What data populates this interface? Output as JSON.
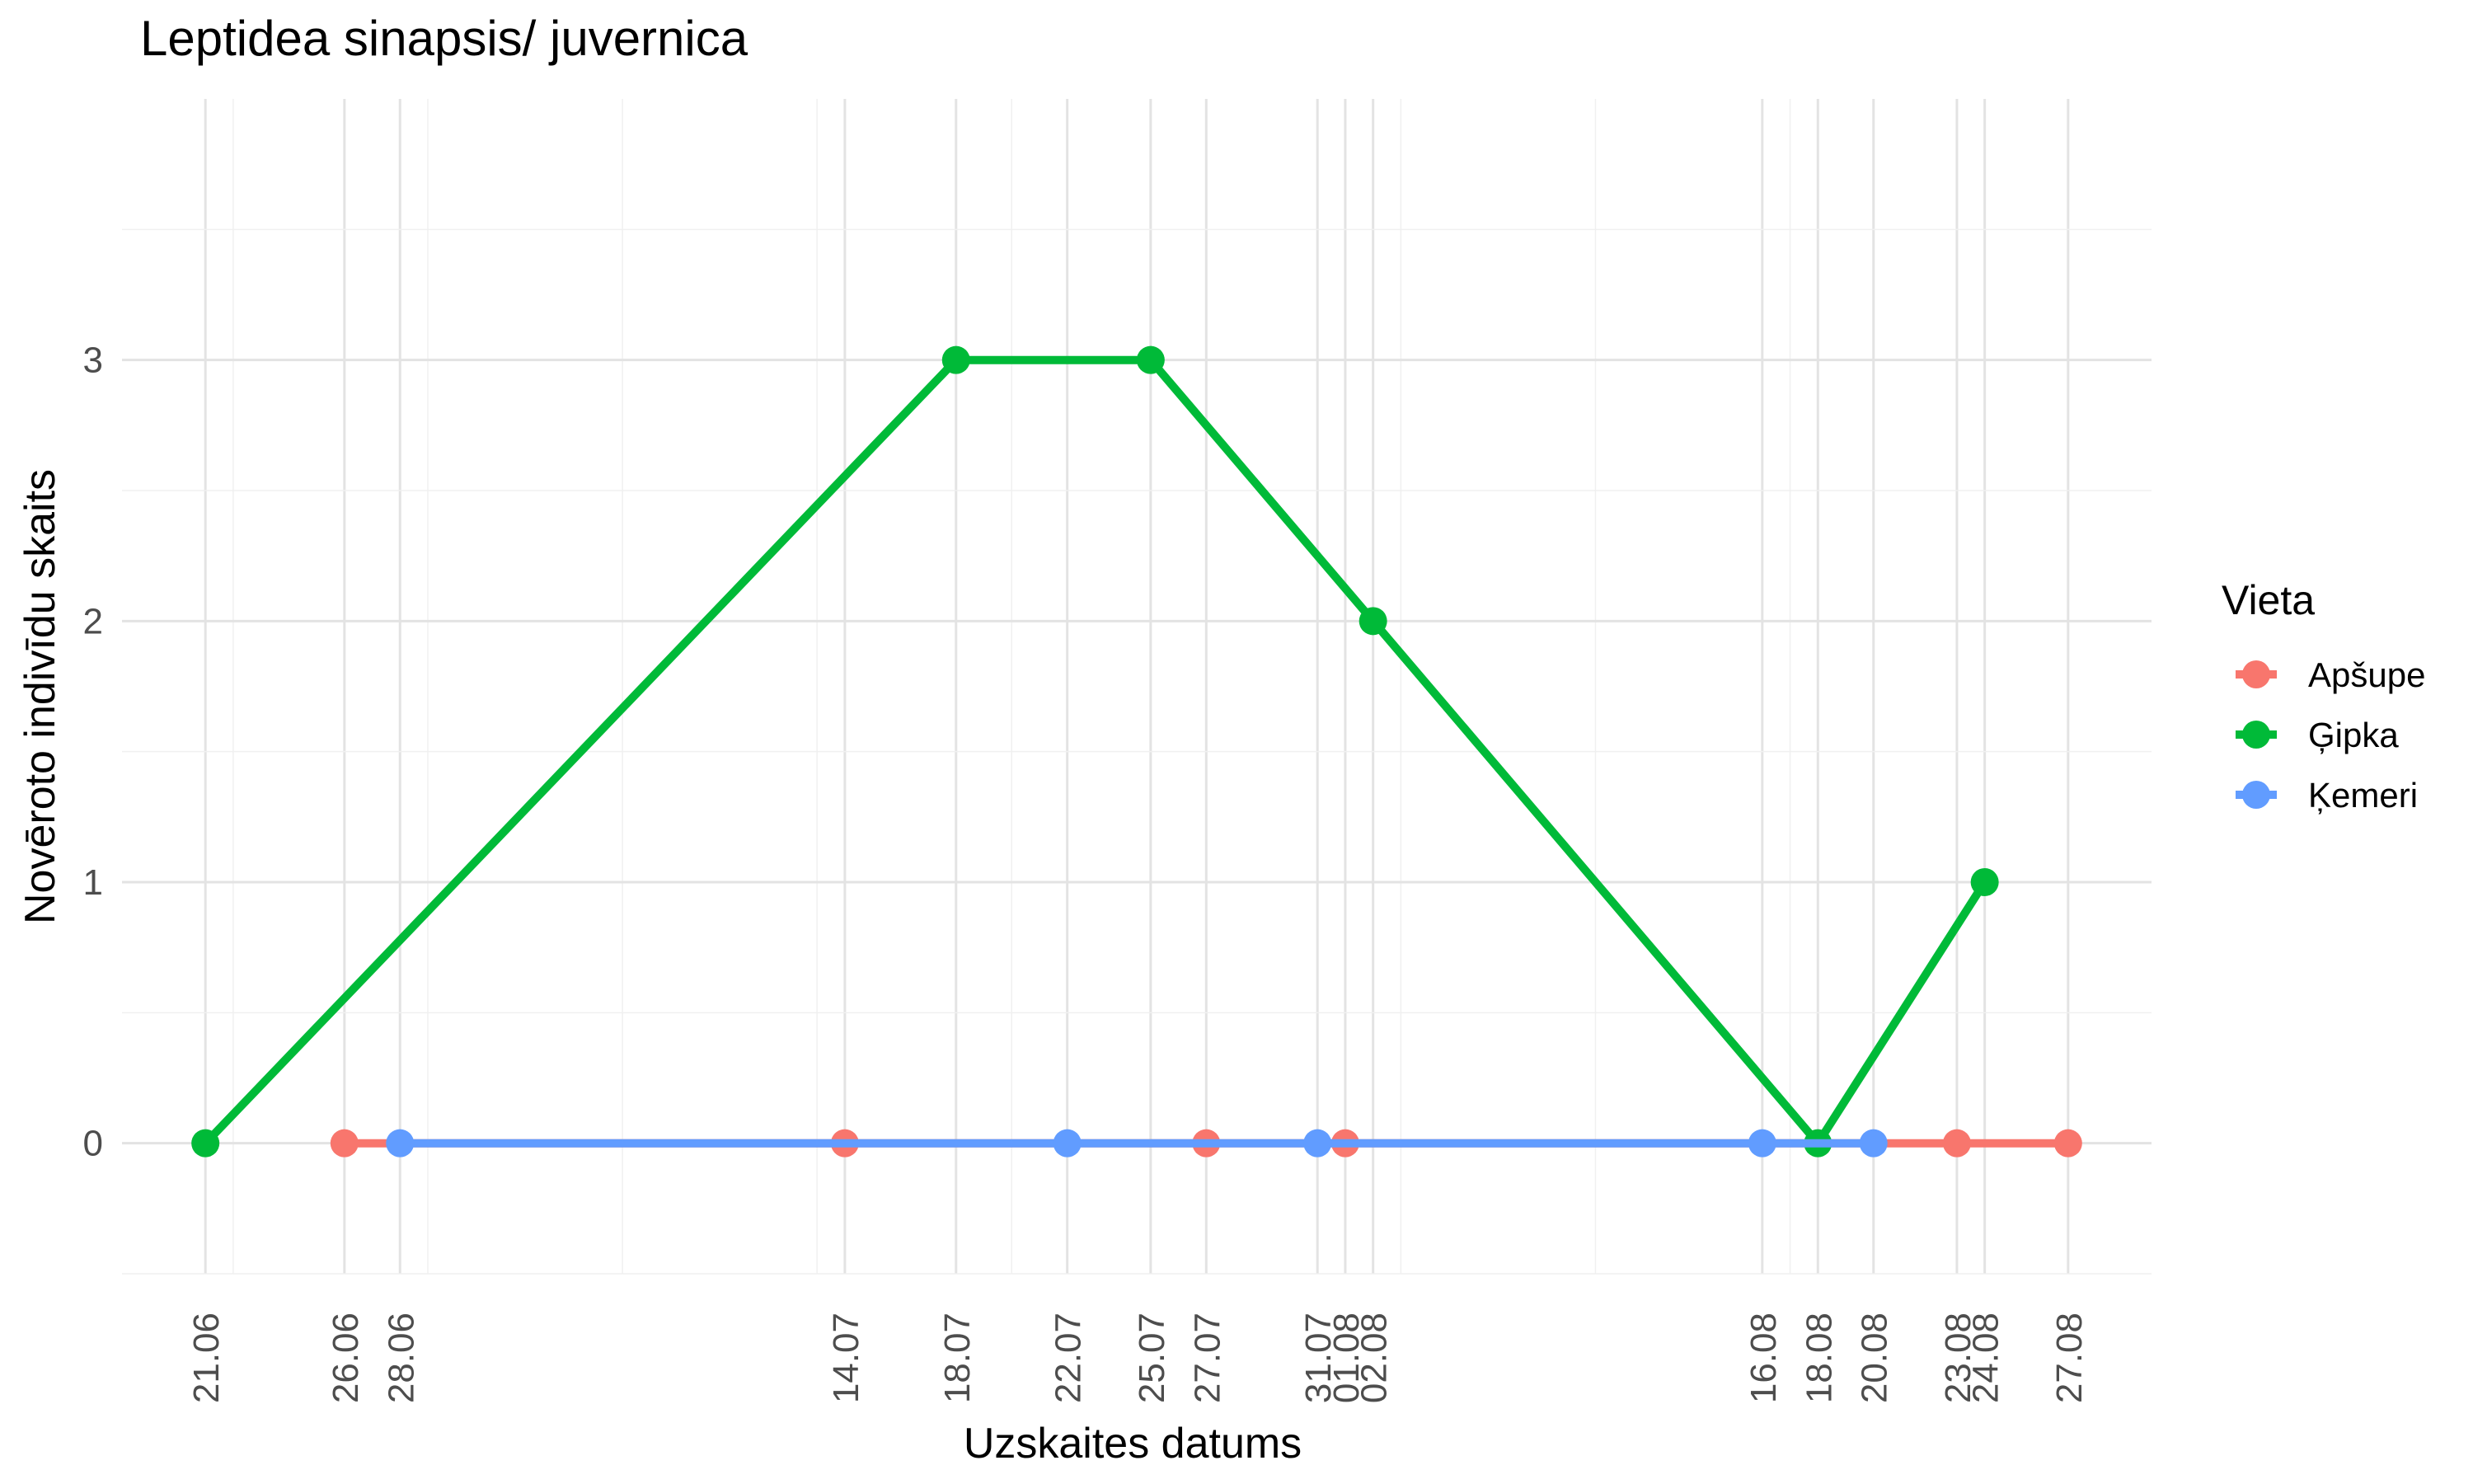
{
  "chart_data": {
    "type": "line",
    "title": "Leptidea sinapsis/ juvernica",
    "xlabel": "Uzskaites datums",
    "ylabel": "Novēroto indivīdu skaits",
    "x_type": "date",
    "x_ticks": [
      "21.06",
      "26.06",
      "28.06",
      "14.07",
      "18.07",
      "22.07",
      "25.07",
      "27.07",
      "31.07",
      "01.08",
      "02.08",
      "16.08",
      "18.08",
      "20.08",
      "23.08",
      "24.08",
      "27.08"
    ],
    "y_ticks": [
      0,
      1,
      2,
      3
    ],
    "ylim": [
      -0.5,
      4.0
    ],
    "grid": true,
    "legend_title": "Vieta",
    "legend_position": "right",
    "series": [
      {
        "name": "Apšupe",
        "color": "#F8766D",
        "points": [
          {
            "x": "26.06",
            "y": 0
          },
          {
            "x": "14.07",
            "y": 0
          },
          {
            "x": "27.07",
            "y": 0
          },
          {
            "x": "01.08",
            "y": 0
          },
          {
            "x": "23.08",
            "y": 0
          },
          {
            "x": "27.08",
            "y": 0
          }
        ]
      },
      {
        "name": "Ģipka",
        "color": "#00BA38",
        "points": [
          {
            "x": "21.06",
            "y": 0
          },
          {
            "x": "18.07",
            "y": 3
          },
          {
            "x": "25.07",
            "y": 3
          },
          {
            "x": "02.08",
            "y": 2
          },
          {
            "x": "18.08",
            "y": 0
          },
          {
            "x": "24.08",
            "y": 1
          }
        ]
      },
      {
        "name": "Ķemeri",
        "color": "#619CFF",
        "points": [
          {
            "x": "28.06",
            "y": 0
          },
          {
            "x": "22.07",
            "y": 0
          },
          {
            "x": "31.07",
            "y": 0
          },
          {
            "x": "16.08",
            "y": 0
          },
          {
            "x": "20.08",
            "y": 0
          }
        ]
      }
    ]
  }
}
